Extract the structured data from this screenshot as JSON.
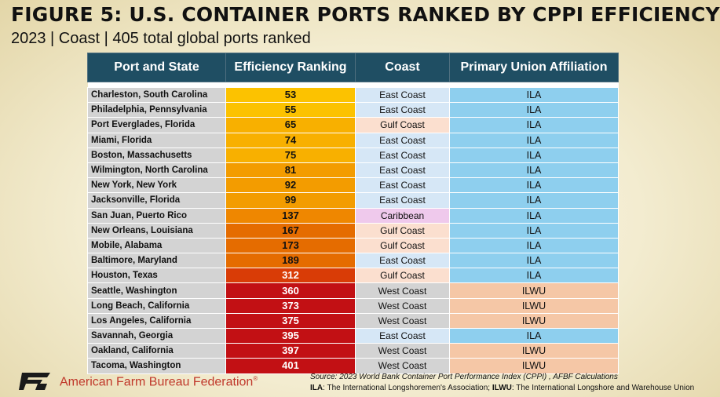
{
  "header": {
    "title": "FIGURE 5: U.S. CONTAINER PORTS RANKED BY CPPI EFFICIENCY",
    "subtitle": "2023 | Coast | 405 total global ports ranked"
  },
  "colors": {
    "header_bg": "#1f4e63",
    "port_bg": "#d3d3d3",
    "coast": {
      "East Coast": "#d6e7f6",
      "Gulf Coast": "#fbdfcf",
      "Caribbean": "#efc9ec",
      "West Coast": "#d3d3d3"
    },
    "union": {
      "ILA": "#8ecfee",
      "ILWU": "#f5c7a6"
    },
    "rank_scale": [
      "#fcc200",
      "#f8b000",
      "#f39c00",
      "#ef8700",
      "#e56c00",
      "#d93c06",
      "#c21014"
    ]
  },
  "chart_data": {
    "type": "table",
    "columns": [
      "Port and State",
      "Efficiency Ranking",
      "Coast",
      "Primary Union Affiliation"
    ],
    "rows": [
      {
        "port": "Charleston, South Carolina",
        "rank": 53,
        "coast": "East Coast",
        "union": "ILA"
      },
      {
        "port": "Philadelphia, Pennsylvania",
        "rank": 55,
        "coast": "East Coast",
        "union": "ILA"
      },
      {
        "port": "Port Everglades, Florida",
        "rank": 65,
        "coast": "Gulf Coast",
        "union": "ILA"
      },
      {
        "port": "Miami, Florida",
        "rank": 74,
        "coast": "East Coast",
        "union": "ILA"
      },
      {
        "port": "Boston, Massachusetts",
        "rank": 75,
        "coast": "East Coast",
        "union": "ILA"
      },
      {
        "port": "Wilmington, North Carolina",
        "rank": 81,
        "coast": "East Coast",
        "union": "ILA"
      },
      {
        "port": "New York, New York",
        "rank": 92,
        "coast": "East Coast",
        "union": "ILA"
      },
      {
        "port": "Jacksonville, Florida",
        "rank": 99,
        "coast": "East Coast",
        "union": "ILA"
      },
      {
        "port": "San Juan, Puerto Rico",
        "rank": 137,
        "coast": "Caribbean",
        "union": "ILA"
      },
      {
        "port": "New Orleans, Louisiana",
        "rank": 167,
        "coast": "Gulf Coast",
        "union": "ILA"
      },
      {
        "port": "Mobile, Alabama",
        "rank": 173,
        "coast": "Gulf Coast",
        "union": "ILA"
      },
      {
        "port": "Baltimore, Maryland",
        "rank": 189,
        "coast": "East Coast",
        "union": "ILA"
      },
      {
        "port": "Houston, Texas",
        "rank": 312,
        "coast": "Gulf Coast",
        "union": "ILA"
      },
      {
        "port": "Seattle, Washington",
        "rank": 360,
        "coast": "West Coast",
        "union": "ILWU"
      },
      {
        "port": "Long Beach, California",
        "rank": 373,
        "coast": "West Coast",
        "union": "ILWU"
      },
      {
        "port": "Los Angeles, California",
        "rank": 375,
        "coast": "West Coast",
        "union": "ILWU"
      },
      {
        "port": "Savannah, Georgia",
        "rank": 395,
        "coast": "East Coast",
        "union": "ILA"
      },
      {
        "port": "Oakland, California",
        "rank": 397,
        "coast": "West Coast",
        "union": "ILWU"
      },
      {
        "port": "Tacoma, Washington",
        "rank": 401,
        "coast": "West Coast",
        "union": "ILWU"
      }
    ]
  },
  "footer": {
    "source": "Source: 2023 World Bank Container Port Performance Index (CPPI) , AFBF Calculations",
    "legend_ila_abbr": "ILA",
    "legend_ila_text": ": The International Longshoremen's Association; ",
    "legend_ilwu_abbr": "ILWU",
    "legend_ilwu_text": ": The International Longshore and Warehouse Union",
    "org_name": "American Farm Bureau Federation",
    "org_mark": "®",
    "logo_icon": "afbf-logo-icon"
  }
}
